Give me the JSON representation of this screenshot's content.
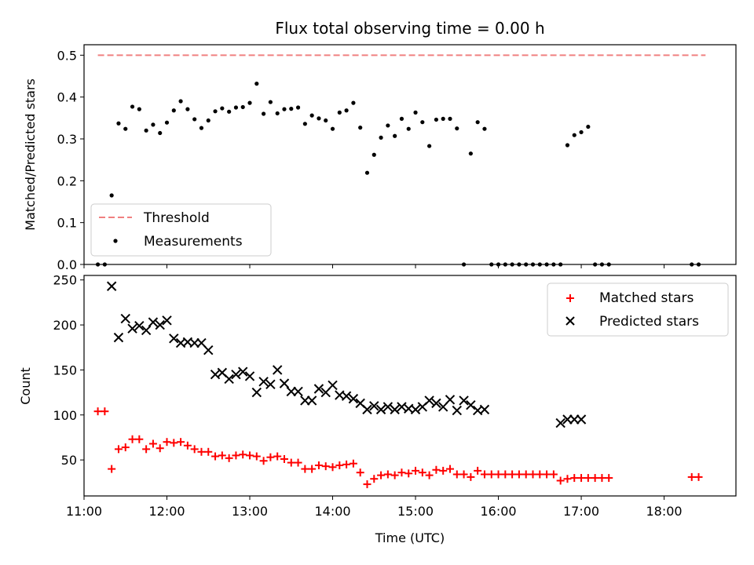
{
  "chart_data": [
    {
      "type": "scatter",
      "title": "Flux total observing time = 0.00 h",
      "xlabel": "",
      "ylabel": "Matched/Predicted stars",
      "xlim": [
        "11:00",
        "18:52"
      ],
      "ylim": [
        0,
        0.525
      ],
      "yticks": [
        "0.0",
        "0.1",
        "0.2",
        "0.3",
        "0.4",
        "0.5"
      ],
      "grid": false,
      "legend_position": "lower-left",
      "series": [
        {
          "name": "Threshold",
          "style": "dashed-line",
          "color": "#f08080",
          "x": [
            "11:10",
            "18:30"
          ],
          "y": [
            0.5,
            0.5
          ]
        },
        {
          "name": "Measurements",
          "style": "dot",
          "color": "#000000",
          "x": [
            "11:10",
            "11:15",
            "11:20",
            "11:25",
            "11:30",
            "11:35",
            "11:40",
            "11:45",
            "11:50",
            "11:55",
            "12:00",
            "12:05",
            "12:10",
            "12:15",
            "12:20",
            "12:25",
            "12:30",
            "12:35",
            "12:40",
            "12:45",
            "12:50",
            "12:55",
            "13:00",
            "13:05",
            "13:10",
            "13:15",
            "13:20",
            "13:25",
            "13:30",
            "13:35",
            "13:40",
            "13:45",
            "13:50",
            "13:55",
            "14:00",
            "14:05",
            "14:10",
            "14:15",
            "14:20",
            "14:25",
            "14:30",
            "14:35",
            "14:40",
            "14:45",
            "14:50",
            "14:55",
            "15:00",
            "15:05",
            "15:10",
            "15:15",
            "15:20",
            "15:25",
            "15:30",
            "15:35",
            "15:40",
            "15:45",
            "15:50",
            "15:55",
            "16:00",
            "16:05",
            "16:10",
            "16:15",
            "16:20",
            "16:25",
            "16:30",
            "16:35",
            "16:40",
            "16:45",
            "16:50",
            "16:55",
            "17:00",
            "17:05",
            "17:10",
            "17:15",
            "17:20",
            "18:20",
            "18:25"
          ],
          "y": [
            0.0,
            0.0,
            0.165,
            0.337,
            0.324,
            0.377,
            0.371,
            0.32,
            0.334,
            0.314,
            0.339,
            0.368,
            0.39,
            0.371,
            0.347,
            0.326,
            0.344,
            0.366,
            0.373,
            0.365,
            0.375,
            0.376,
            0.386,
            0.432,
            0.36,
            0.388,
            0.361,
            0.371,
            0.372,
            0.375,
            0.336,
            0.356,
            0.349,
            0.344,
            0.324,
            0.363,
            0.368,
            0.386,
            0.327,
            0.219,
            0.262,
            0.303,
            0.332,
            0.307,
            0.348,
            0.324,
            0.363,
            0.34,
            0.283,
            0.346,
            0.348,
            0.348,
            0.325,
            0.0,
            0.265,
            0.34,
            0.324,
            0.0,
            0.0,
            0.0,
            0.0,
            0.0,
            0.0,
            0.0,
            0.0,
            0.0,
            0.0,
            0.0,
            0.285,
            0.309,
            0.316,
            0.329,
            0.0,
            0.0,
            0.0,
            0.0,
            0.0
          ]
        }
      ]
    },
    {
      "type": "scatter",
      "title": "",
      "xlabel": "Time (UTC)",
      "ylabel": "Count",
      "xlim": [
        "11:00",
        "18:52"
      ],
      "ylim": [
        10,
        255
      ],
      "xticks": [
        "11:00",
        "12:00",
        "13:00",
        "14:00",
        "15:00",
        "16:00",
        "17:00",
        "18:00"
      ],
      "yticks": [
        "50",
        "100",
        "150",
        "200",
        "250"
      ],
      "grid": false,
      "legend_position": "top-right",
      "series": [
        {
          "name": "Matched stars",
          "style": "plus",
          "color": "#ff0000",
          "x": [
            "11:10",
            "11:15",
            "11:20",
            "11:25",
            "11:30",
            "11:35",
            "11:40",
            "11:45",
            "11:50",
            "11:55",
            "12:00",
            "12:05",
            "12:10",
            "12:15",
            "12:20",
            "12:25",
            "12:30",
            "12:35",
            "12:40",
            "12:45",
            "12:50",
            "12:55",
            "13:00",
            "13:05",
            "13:10",
            "13:15",
            "13:20",
            "13:25",
            "13:30",
            "13:35",
            "13:40",
            "13:45",
            "13:50",
            "13:55",
            "14:00",
            "14:05",
            "14:10",
            "14:15",
            "14:20",
            "14:25",
            "14:30",
            "14:35",
            "14:40",
            "14:45",
            "14:50",
            "14:55",
            "15:00",
            "15:05",
            "15:10",
            "15:15",
            "15:20",
            "15:25",
            "15:30",
            "15:35",
            "15:40",
            "15:45",
            "15:50",
            "15:55",
            "16:00",
            "16:05",
            "16:10",
            "16:15",
            "16:20",
            "16:25",
            "16:30",
            "16:35",
            "16:40",
            "16:45",
            "16:50",
            "16:55",
            "17:00",
            "17:05",
            "17:10",
            "17:15",
            "17:20",
            "18:20",
            "18:25"
          ],
          "y": [
            104,
            104,
            40,
            62,
            64,
            73,
            73,
            62,
            68,
            63,
            70,
            69,
            70,
            66,
            62,
            59,
            59,
            54,
            55,
            52,
            55,
            56,
            55,
            54,
            49,
            53,
            54,
            51,
            47,
            47,
            40,
            40,
            44,
            43,
            42,
            44,
            45,
            46,
            36,
            23,
            29,
            33,
            34,
            33,
            36,
            35,
            38,
            36,
            33,
            39,
            38,
            40,
            34,
            34,
            31,
            38,
            34,
            34,
            34,
            34,
            34,
            34,
            34,
            34,
            34,
            34,
            34,
            27,
            29,
            30,
            30,
            30,
            30,
            30,
            30,
            31,
            31
          ]
        },
        {
          "name": "Predicted stars",
          "style": "x",
          "color": "#000000",
          "x": [
            "11:20",
            "11:25",
            "11:30",
            "11:35",
            "11:40",
            "11:45",
            "11:50",
            "11:55",
            "12:00",
            "12:05",
            "12:10",
            "12:15",
            "12:20",
            "12:25",
            "12:30",
            "12:35",
            "12:40",
            "12:45",
            "12:50",
            "12:55",
            "13:00",
            "13:05",
            "13:10",
            "13:15",
            "13:20",
            "13:25",
            "13:30",
            "13:35",
            "13:40",
            "13:45",
            "13:50",
            "13:55",
            "14:00",
            "14:05",
            "14:10",
            "14:15",
            "14:20",
            "14:25",
            "14:30",
            "14:35",
            "14:40",
            "14:45",
            "14:50",
            "14:55",
            "15:00",
            "15:05",
            "15:10",
            "15:15",
            "15:20",
            "15:25",
            "15:30",
            "15:35",
            "15:40",
            "15:45",
            "15:50",
            "16:45",
            "16:50",
            "16:55",
            "17:00"
          ],
          "y": [
            243,
            186,
            207,
            196,
            199,
            194,
            203,
            200,
            205,
            185,
            180,
            181,
            180,
            180,
            172,
            145,
            147,
            140,
            145,
            148,
            143,
            125,
            137,
            134,
            150,
            135,
            126,
            126,
            116,
            116,
            129,
            125,
            133,
            122,
            121,
            118,
            113,
            106,
            110,
            106,
            109,
            106,
            109,
            107,
            106,
            109,
            116,
            113,
            109,
            117,
            105,
            116,
            111,
            105,
            106,
            91,
            95,
            95,
            95
          ]
        }
      ]
    }
  ]
}
